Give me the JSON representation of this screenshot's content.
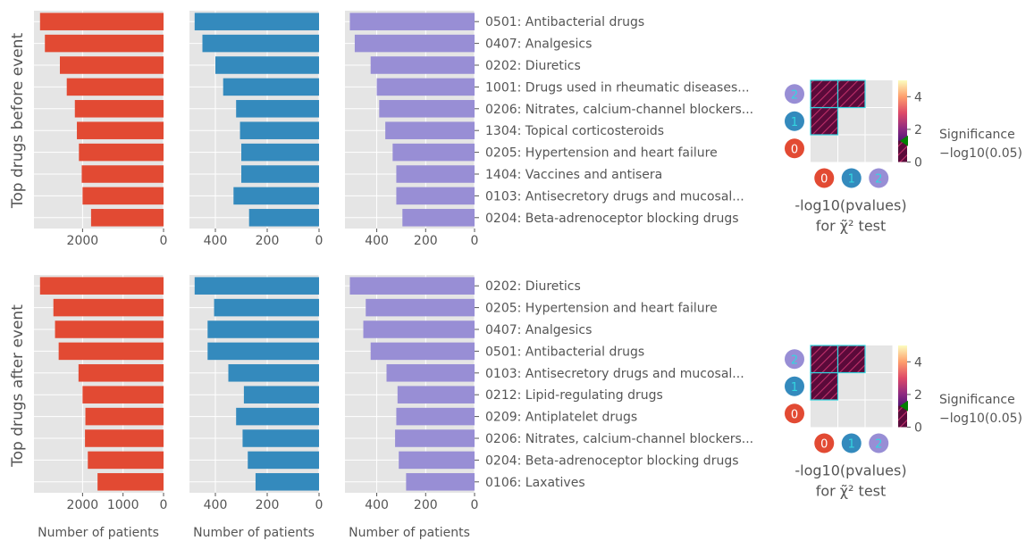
{
  "figure": {
    "row_titles": [
      "Top drugs before event",
      "Top drugs after event"
    ],
    "x_label": "Number of patients",
    "heatmap_title_line1": "-log10(pvalues)",
    "heatmap_title_line2": "for χ̃² test",
    "colorbar_label_line1": "Significance",
    "colorbar_label_line2": "−log10(0.05)",
    "colors": {
      "group0": "#E24A33",
      "group1": "#348ABD",
      "group2": "#988ED5",
      "panel_bg": "#E5E5E5",
      "grid": "#ffffff",
      "tick_text": "#555555",
      "label_text": "#555555",
      "hatch_face": "#5A0A3A",
      "hatch_line": "#33D6E0",
      "sig_marker": "#008000"
    }
  },
  "chart_data": [
    {
      "type": "bar",
      "orientation": "horizontal",
      "row": "Top drugs before event",
      "categories": [
        "0501: Antibacterial drugs",
        "0407: Analgesics",
        "0202: Diuretics",
        "1001: Drugs used in rheumatic diseases...",
        "0206: Nitrates, calcium-channel blockers...",
        "1304: Topical corticosteroids",
        "0205: Hypertension and heart failure",
        "1404: Vaccines and antisera",
        "0103: Antisecretory drugs and mucosal...",
        "0204: Beta-adrenoceptor blocking drugs"
      ],
      "series": [
        {
          "values": [
            3050,
            2930,
            2560,
            2390,
            2190,
            2140,
            2090,
            2020,
            2000,
            1790
          ],
          "xlim": [
            3200,
            0
          ],
          "ticks": [
            2000,
            0
          ],
          "tick_labels": [
            "2000",
            "0"
          ]
        },
        {
          "values": [
            480,
            450,
            400,
            370,
            320,
            305,
            300,
            300,
            330,
            270
          ],
          "xlim": [
            500,
            0
          ],
          "ticks": [
            400,
            200,
            0
          ],
          "tick_labels": [
            "400",
            "200",
            "0"
          ]
        },
        {
          "values": [
            510,
            490,
            425,
            400,
            390,
            365,
            335,
            320,
            320,
            295
          ],
          "xlim": [
            530,
            0
          ],
          "ticks": [
            400,
            200,
            0
          ],
          "tick_labels": [
            "400",
            "200",
            "0"
          ]
        }
      ],
      "xlabel": "",
      "ylabel": "Top drugs before event"
    },
    {
      "type": "bar",
      "orientation": "horizontal",
      "row": "Top drugs after event",
      "categories": [
        "0202: Diuretics",
        "0205: Hypertension and heart failure",
        "0407: Analgesics",
        "0501: Antibacterial drugs",
        "0103: Antisecretory drugs and mucosal...",
        "0212: Lipid-regulating drugs",
        "0209: Antiplatelet drugs",
        "0206: Nitrates, calcium-channel blockers...",
        "0204: Beta-adrenoceptor blocking drugs",
        "0106: Laxatives"
      ],
      "series": [
        {
          "values": [
            3050,
            2720,
            2680,
            2590,
            2100,
            2000,
            1930,
            1940,
            1870,
            1630
          ],
          "xlim": [
            3200,
            0
          ],
          "ticks": [
            2000,
            1000,
            0
          ],
          "tick_labels": [
            "2000",
            "1000",
            "0"
          ]
        },
        {
          "values": [
            480,
            405,
            430,
            430,
            350,
            290,
            320,
            295,
            275,
            245
          ],
          "xlim": [
            500,
            0
          ],
          "ticks": [
            400,
            200,
            0
          ],
          "tick_labels": [
            "400",
            "200",
            "0"
          ]
        },
        {
          "values": [
            510,
            445,
            455,
            425,
            360,
            315,
            320,
            325,
            310,
            280
          ],
          "xlim": [
            530,
            0
          ],
          "ticks": [
            400,
            200,
            0
          ],
          "tick_labels": [
            "400",
            "200",
            "0"
          ]
        }
      ],
      "xlabel": "Number of patients",
      "ylabel": "Top drugs after event"
    },
    {
      "type": "heatmap",
      "row": "Top drugs before event",
      "x_categories": [
        "0",
        "1",
        "2"
      ],
      "y_categories": [
        "0",
        "1",
        "2"
      ],
      "significant_cells": [
        [
          0,
          1
        ],
        [
          0,
          2
        ],
        [
          1,
          2
        ]
      ],
      "colorbar": {
        "ticks": [
          0,
          2,
          4
        ],
        "tick_labels": [
          "0",
          "2",
          "4"
        ],
        "range": [
          0,
          5
        ],
        "threshold": 1.30103,
        "cmap": "magma-like"
      },
      "title": "-log10(pvalues) for χ̃² test"
    },
    {
      "type": "heatmap",
      "row": "Top drugs after event",
      "x_categories": [
        "0",
        "1",
        "2"
      ],
      "y_categories": [
        "0",
        "1",
        "2"
      ],
      "significant_cells": [
        [
          0,
          1
        ],
        [
          0,
          2
        ],
        [
          1,
          2
        ]
      ],
      "colorbar": {
        "ticks": [
          0,
          2,
          4
        ],
        "tick_labels": [
          "0",
          "2",
          "4"
        ],
        "range": [
          0,
          5
        ],
        "threshold": 1.30103,
        "cmap": "magma-like"
      },
      "title": "-log10(pvalues) for χ̃² test"
    }
  ]
}
